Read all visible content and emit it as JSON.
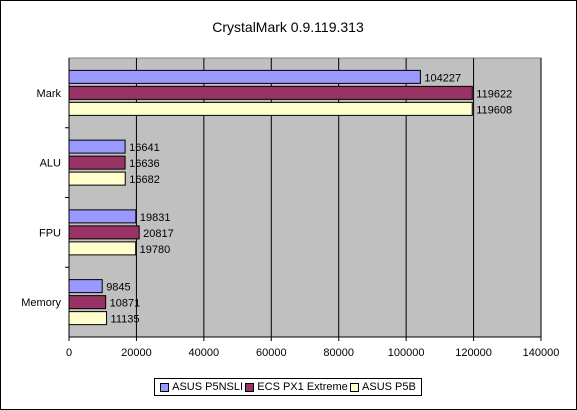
{
  "chart_data": {
    "type": "bar",
    "orientation": "horizontal",
    "title": "CrystalMark 0.9.119.313",
    "categories": [
      "Mark",
      "ALU",
      "FPU",
      "Memory"
    ],
    "series": [
      {
        "name": "ASUS P5NSLI",
        "color": "#9999ff",
        "values": [
          104227,
          16641,
          19831,
          9845
        ]
      },
      {
        "name": "ECS PX1 Extreme",
        "color": "#993366",
        "values": [
          119622,
          16636,
          20817,
          10871
        ]
      },
      {
        "name": "ASUS P5B",
        "color": "#ffffcc",
        "values": [
          119608,
          16682,
          19780,
          11135
        ]
      }
    ],
    "xlim": [
      0,
      140000
    ],
    "xticks": [
      0,
      20000,
      40000,
      60000,
      80000,
      100000,
      120000,
      140000
    ],
    "grid": true,
    "plot_background": "#c0c0c0",
    "legend_position": "bottom"
  }
}
